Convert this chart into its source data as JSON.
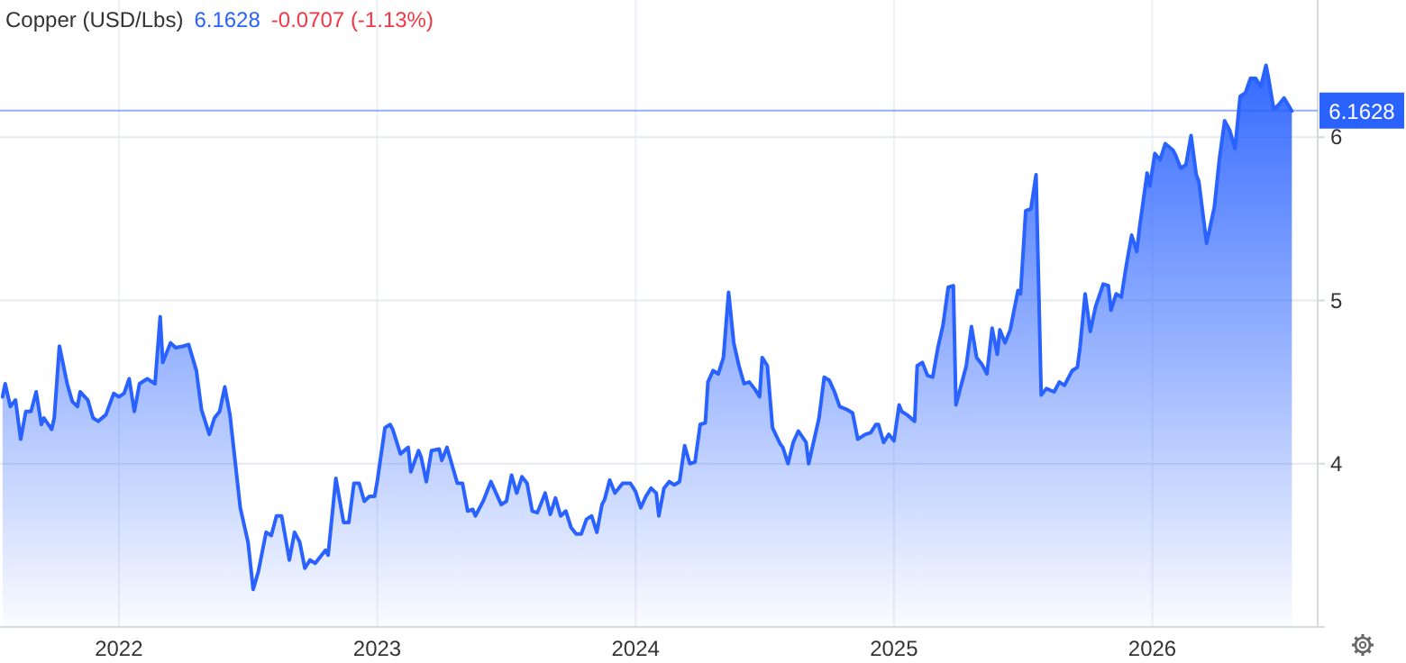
{
  "chart_data": {
    "type": "area",
    "title": "Copper (USD/Lbs)",
    "annotations": [
      "6.1628",
      "-0.0707 (-1.13%)"
    ],
    "x": [
      2021.55,
      2021.56,
      2021.58,
      2021.6,
      2021.62,
      2021.64,
      2021.66,
      2021.68,
      2021.7,
      2021.71,
      2021.74,
      2021.75,
      2021.77,
      2021.8,
      2021.82,
      2021.84,
      2021.85,
      2021.88,
      2021.9,
      2021.92,
      2021.95,
      2021.98,
      2022.0,
      2022.02,
      2022.04,
      2022.06,
      2022.08,
      2022.11,
      2022.14,
      2022.16,
      2022.17,
      2022.2,
      2022.22,
      2022.25,
      2022.27,
      2022.3,
      2022.32,
      2022.35,
      2022.37,
      2022.39,
      2022.41,
      2022.43,
      2022.47,
      2022.5,
      2022.52,
      2022.54,
      2022.57,
      2022.59,
      2022.61,
      2022.63,
      2022.66,
      2022.68,
      2022.7,
      2022.72,
      2022.74,
      2022.76,
      2022.8,
      2022.81,
      2022.84,
      2022.87,
      2022.89,
      2022.91,
      2022.93,
      2022.95,
      2022.97,
      2022.99,
      2023.0,
      2023.03,
      2023.05,
      2023.06,
      2023.09,
      2023.12,
      2023.13,
      2023.16,
      2023.17,
      2023.19,
      2023.21,
      2023.24,
      2023.25,
      2023.27,
      2023.31,
      2023.33,
      2023.35,
      2023.37,
      2023.38,
      2023.41,
      2023.44,
      2023.48,
      2023.5,
      2023.52,
      2023.54,
      2023.56,
      2023.58,
      2023.6,
      2023.62,
      2023.65,
      2023.67,
      2023.69,
      2023.71,
      2023.73,
      2023.75,
      2023.77,
      2023.79,
      2023.81,
      2023.83,
      2023.85,
      2023.87,
      2023.88,
      2023.9,
      2023.92,
      2023.95,
      2023.98,
      2024.0,
      2024.02,
      2024.04,
      2024.06,
      2024.08,
      2024.09,
      2024.11,
      2024.13,
      2024.15,
      2024.17,
      2024.19,
      2024.21,
      2024.23,
      2024.25,
      2024.27,
      2024.28,
      2024.3,
      2024.32,
      2024.34,
      2024.36,
      2024.38,
      2024.4,
      2024.42,
      2024.44,
      2024.46,
      2024.48,
      2024.49,
      2024.51,
      2024.53,
      2024.56,
      2024.57,
      2024.59,
      2024.61,
      2024.63,
      2024.66,
      2024.67,
      2024.7,
      2024.71,
      2024.73,
      2024.75,
      2024.77,
      2024.79,
      2024.82,
      2024.84,
      2024.86,
      2024.89,
      2024.91,
      2024.93,
      2024.94,
      2024.96,
      2024.98,
      2025.0,
      2025.02,
      2025.03,
      2025.05,
      2025.08,
      2025.09,
      2025.11,
      2025.13,
      2025.15,
      2025.17,
      2025.19,
      2025.21,
      2025.23,
      2025.24,
      2025.27,
      2025.28,
      2025.3,
      2025.32,
      2025.34,
      2025.36,
      2025.38,
      2025.4,
      2025.41,
      2025.43,
      2025.45,
      2025.48,
      2025.49,
      2025.51,
      2025.53,
      2025.55,
      2025.57,
      2025.59,
      2025.62,
      2025.64,
      2025.66,
      2025.69,
      2025.71,
      2025.72,
      2025.74,
      2025.76,
      2025.78,
      2025.81,
      2025.83,
      2025.84,
      2025.86,
      2025.88,
      2025.9,
      2025.92,
      2025.94,
      2025.95,
      2025.98,
      2025.99,
      2026.01,
      2026.03,
      2026.05,
      2026.08,
      2026.09,
      2026.11,
      2026.13,
      2026.15,
      2026.17,
      2026.18,
      2026.21,
      2026.24,
      2026.26,
      2026.28,
      2026.3,
      2026.32,
      2026.34,
      2026.36,
      2026.38,
      2026.4,
      2026.42,
      2026.44,
      2026.45,
      2026.47,
      2026.49,
      2026.51,
      2026.54
    ],
    "series": [
      {
        "color": "#2962ff",
        "values": [
          4.41,
          4.49,
          4.35,
          4.39,
          4.15,
          4.32,
          4.32,
          4.44,
          4.24,
          4.28,
          4.21,
          4.28,
          4.72,
          4.49,
          4.38,
          4.35,
          4.44,
          4.39,
          4.28,
          4.26,
          4.3,
          4.43,
          4.41,
          4.43,
          4.52,
          4.32,
          4.49,
          4.52,
          4.49,
          4.9,
          4.62,
          4.74,
          4.71,
          4.72,
          4.73,
          4.57,
          4.33,
          4.18,
          4.28,
          4.32,
          4.47,
          4.3,
          3.73,
          3.52,
          3.23,
          3.34,
          3.58,
          3.56,
          3.68,
          3.68,
          3.41,
          3.58,
          3.52,
          3.36,
          3.41,
          3.39,
          3.47,
          3.44,
          3.91,
          3.64,
          3.64,
          3.88,
          3.88,
          3.77,
          3.8,
          3.8,
          3.89,
          4.22,
          4.24,
          4.21,
          4.06,
          4.1,
          3.95,
          4.08,
          4.04,
          3.89,
          4.08,
          4.09,
          4.02,
          4.1,
          3.88,
          3.88,
          3.71,
          3.72,
          3.68,
          3.77,
          3.89,
          3.75,
          3.77,
          3.93,
          3.82,
          3.92,
          3.88,
          3.71,
          3.7,
          3.82,
          3.69,
          3.79,
          3.68,
          3.71,
          3.61,
          3.57,
          3.57,
          3.66,
          3.68,
          3.58,
          3.75,
          3.78,
          3.9,
          3.82,
          3.88,
          3.88,
          3.83,
          3.73,
          3.8,
          3.85,
          3.82,
          3.68,
          3.85,
          3.89,
          3.87,
          3.89,
          4.11,
          4.0,
          4.01,
          4.24,
          4.25,
          4.5,
          4.57,
          4.55,
          4.65,
          5.05,
          4.74,
          4.6,
          4.49,
          4.5,
          4.46,
          4.41,
          4.65,
          4.6,
          4.22,
          4.12,
          4.1,
          4.0,
          4.13,
          4.2,
          4.13,
          4.0,
          4.21,
          4.28,
          4.53,
          4.51,
          4.44,
          4.35,
          4.33,
          4.31,
          4.15,
          4.18,
          4.19,
          4.24,
          4.24,
          4.13,
          4.18,
          4.14,
          4.36,
          4.32,
          4.3,
          4.26,
          4.6,
          4.62,
          4.54,
          4.53,
          4.71,
          4.85,
          5.08,
          5.09,
          4.36,
          4.54,
          4.6,
          4.84,
          4.65,
          4.61,
          4.55,
          4.83,
          4.67,
          4.82,
          4.74,
          4.82,
          5.06,
          5.04,
          5.55,
          5.56,
          5.77,
          4.42,
          4.46,
          4.44,
          4.5,
          4.48,
          4.57,
          4.59,
          4.71,
          5.04,
          4.81,
          4.96,
          5.1,
          5.09,
          4.94,
          5.04,
          5.02,
          5.22,
          5.4,
          5.3,
          5.44,
          5.78,
          5.7,
          5.9,
          5.86,
          5.96,
          5.92,
          5.89,
          5.81,
          5.83,
          6.01,
          5.77,
          5.73,
          5.35,
          5.57,
          5.87,
          6.1,
          6.04,
          5.93,
          6.25,
          6.27,
          6.36,
          6.36,
          6.31,
          6.44,
          6.36,
          6.17,
          6.2,
          6.24,
          6.16
        ]
      }
    ],
    "xlim": [
      2021.54,
      2026.64
    ],
    "xticks": [
      2022,
      2023,
      2024,
      2025,
      2026
    ],
    "ylim": [
      3,
      6.84
    ],
    "yticks": [
      4,
      5,
      6
    ],
    "ref_lines": [
      {
        "axis": "y",
        "value": 6.1628,
        "label": "6.1628",
        "color": "#2962ff"
      }
    ],
    "grid": true
  }
}
